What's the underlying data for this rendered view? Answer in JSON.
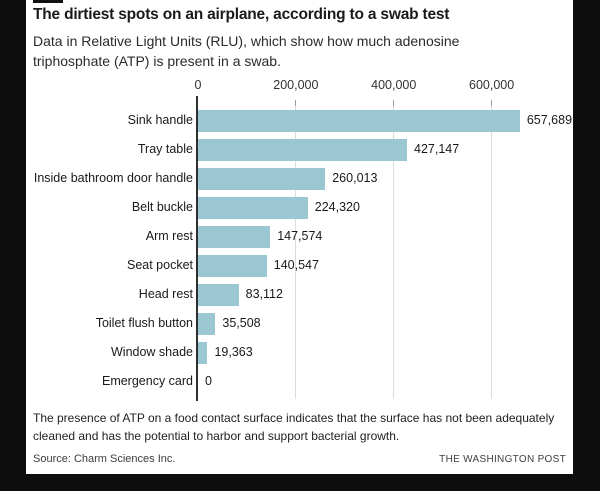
{
  "colors": {
    "background": "#0d0d0d",
    "card": "#ffffff",
    "bar": "#9ac7d1",
    "grid": "#dcdcdc",
    "tick": "#999999",
    "axis_line": "#2f2f2f"
  },
  "chart_data": {
    "type": "bar",
    "orientation": "horizontal",
    "title": "The dirtiest spots on an airplane, according to a swab test",
    "subtitle": "Data in Relative Light Units (RLU), which show how much adenosine triphosphate (ATP) is present in a swab.",
    "categories": [
      "Sink handle",
      "Tray table",
      "Inside bathroom door handle",
      "Belt buckle",
      "Arm rest",
      "Seat pocket",
      "Head rest",
      "Toilet flush button",
      "Window shade",
      "Emergency card"
    ],
    "values": [
      657689,
      427147,
      260013,
      224320,
      147574,
      140547,
      83112,
      35508,
      19363,
      0
    ],
    "value_labels": [
      "657,689",
      "427,147",
      "260,013",
      "224,320",
      "147,574",
      "140,547",
      "83,112",
      "35,508",
      "19,363",
      "0"
    ],
    "x_ticks": [
      0,
      200000,
      400000,
      600000
    ],
    "x_tick_labels": [
      "0",
      "200,000",
      "400,000",
      "600,000"
    ],
    "xlim": [
      0,
      752000
    ],
    "grid": true,
    "legend": "none",
    "unit": "RLU"
  },
  "footer": {
    "note": "The presence of ATP on a food contact surface indicates that the surface has not been adequately cleaned and has the potential to harbor and support bacterial growth.",
    "source": "Source: Charm Sciences Inc.",
    "credit": "THE WASHINGTON POST"
  }
}
